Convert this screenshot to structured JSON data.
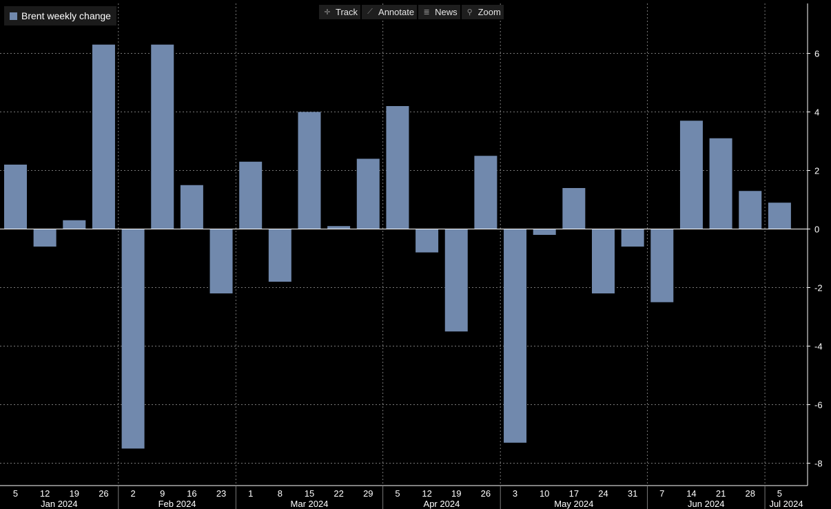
{
  "toolbar": {
    "buttons": [
      {
        "name": "track-button",
        "icon": "crosshair-icon",
        "glyph": "✛",
        "label": "Track"
      },
      {
        "name": "annotate-button",
        "icon": "pencil-icon",
        "glyph": "⟋",
        "label": "Annotate"
      },
      {
        "name": "news-button",
        "icon": "news-icon",
        "glyph": "≣",
        "label": "News"
      },
      {
        "name": "zoom-button",
        "icon": "magnifier-icon",
        "glyph": "⚲",
        "label": "Zoom"
      }
    ]
  },
  "colors": {
    "bar": "#7189ad",
    "grid": "#7a7a7a",
    "axis": "#ffffff",
    "text": "#ffffff",
    "background": "#000000"
  },
  "chart_data": {
    "type": "bar",
    "title": "",
    "xlabel": "",
    "ylabel": "",
    "legend": {
      "position": "top-left",
      "entries": [
        "Brent weekly change"
      ]
    },
    "grid": true,
    "ylim": [
      -8.6,
      7.6
    ],
    "yticks": [
      -8,
      -6,
      -4,
      -2,
      0,
      2,
      4,
      6
    ],
    "y_axis_side": "right",
    "categories": [
      "5",
      "12",
      "19",
      "26",
      "2",
      "9",
      "16",
      "23",
      "1",
      "8",
      "15",
      "22",
      "29",
      "5",
      "12",
      "19",
      "26",
      "3",
      "10",
      "17",
      "24",
      "31",
      "7",
      "14",
      "21",
      "28",
      "5"
    ],
    "months": [
      {
        "label": "Jan 2024",
        "start": 0,
        "end": 3
      },
      {
        "label": "Feb 2024",
        "start": 4,
        "end": 7
      },
      {
        "label": "Mar 2024",
        "start": 8,
        "end": 12
      },
      {
        "label": "Apr 2024",
        "start": 13,
        "end": 16
      },
      {
        "label": "May 2024",
        "start": 17,
        "end": 21
      },
      {
        "label": "Jun 2024",
        "start": 22,
        "end": 25
      },
      {
        "label": "Jul 2024",
        "start": 26,
        "end": 26
      }
    ],
    "series": [
      {
        "name": "Brent weekly change",
        "values": [
          2.2,
          -0.6,
          0.3,
          6.3,
          -7.5,
          6.3,
          1.5,
          -2.2,
          2.3,
          -1.8,
          4.0,
          0.1,
          2.4,
          4.2,
          -0.8,
          -3.5,
          2.5,
          -7.3,
          -0.2,
          1.4,
          -2.2,
          -0.6,
          -2.5,
          3.7,
          3.1,
          1.3,
          0.9
        ]
      }
    ]
  }
}
